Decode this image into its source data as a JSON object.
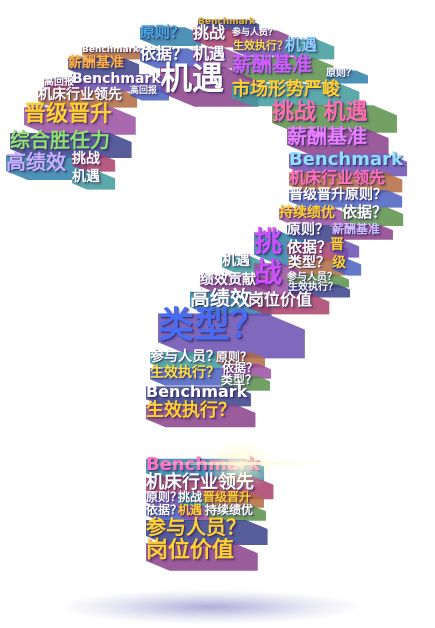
{
  "words": [
    {
      "text": "Benchmark",
      "color": "#e8b830"
    },
    {
      "text": "参与人员？",
      "color": "#ffffff"
    },
    {
      "text": "原则？",
      "color": "#4aa8e0"
    },
    {
      "text": "挑战",
      "color": "#ffffff"
    },
    {
      "text": "生效执行？",
      "color": "#ffe040"
    },
    {
      "text": "机遇",
      "color": "#8fd0ff"
    },
    {
      "text": "Benchmark",
      "color": "#ffffff"
    },
    {
      "text": "依据？",
      "color": "#ffffff"
    },
    {
      "text": "机遇",
      "color": "#ffffff"
    },
    {
      "text": "薪酬基准",
      "color": "#d05cff"
    },
    {
      "text": "薪酬基准",
      "color": "#ffb040"
    },
    {
      "text": "机遇",
      "color": "#ffffff"
    },
    {
      "text": "原则？",
      "color": "#ffffff"
    },
    {
      "text": "高回报",
      "color": "#ffffff"
    },
    {
      "text": "Benchmark",
      "color": "#ffffff"
    },
    {
      "text": "市场形势严峻",
      "color": "#ffd030"
    },
    {
      "text": "机床行业领先",
      "color": "#ffffff"
    },
    {
      "text": "高回报",
      "color": "#ffffff"
    },
    {
      "text": "晋级晋升",
      "color": "#ffd030"
    },
    {
      "text": "挑战 机遇",
      "color": "#ff6fb0"
    },
    {
      "text": "综合胜任力",
      "color": "#8fe070"
    },
    {
      "text": "薪酬基准",
      "color": "#e880ff"
    },
    {
      "text": "高绩效",
      "color": "#c8b0ff"
    },
    {
      "text": "挑战",
      "color": "#ffffff"
    },
    {
      "text": "Benchmark",
      "color": "#8fe0ff"
    },
    {
      "text": "机遇",
      "color": "#ffffff"
    },
    {
      "text": "机床行业领先",
      "color": "#ff70c0"
    },
    {
      "text": "晋级晋升原则？",
      "color": "#ffffff"
    },
    {
      "text": "持续绩优",
      "color": "#ffd030"
    },
    {
      "text": "依据？",
      "color": "#ffffff"
    },
    {
      "text": "原则？",
      "color": "#ffffff"
    },
    {
      "text": "薪酬基准",
      "color": "#d0c0ff"
    },
    {
      "text": "挑",
      "color": "#d050ff"
    },
    {
      "text": "依据？",
      "color": "#ffffff"
    },
    {
      "text": "晋",
      "color": "#ffd030"
    },
    {
      "text": "机遇",
      "color": "#ffffff"
    },
    {
      "text": "类型？",
      "color": "#ffffff"
    },
    {
      "text": "级",
      "color": "#ffd030"
    },
    {
      "text": "战",
      "color": "#d050ff"
    },
    {
      "text": "参与人员？",
      "color": "#ffffff"
    },
    {
      "text": "生效执行？",
      "color": "#ffffff"
    },
    {
      "text": "绩效贡献",
      "color": "#ffffff"
    },
    {
      "text": "高绩效",
      "color": "#ffffff"
    },
    {
      "text": "岗位价值",
      "color": "#ffffff"
    },
    {
      "text": "类型？",
      "color": "#4a6cf0"
    },
    {
      "text": "参与人员？",
      "color": "#ffffff"
    },
    {
      "text": "原则？",
      "color": "#ffffff"
    },
    {
      "text": "生效执行？",
      "color": "#ffe040"
    },
    {
      "text": "依据？",
      "color": "#ffffff"
    },
    {
      "text": "类型？",
      "color": "#ffffff"
    },
    {
      "text": "Benchmark",
      "color": "#ffffff"
    },
    {
      "text": "生效执行？",
      "color": "#ffd030"
    },
    {
      "text": "Benchmark",
      "color": "#ff70c0"
    },
    {
      "text": "机床行业领先",
      "color": "#ffffff"
    },
    {
      "text": "原则？",
      "color": "#ffffff"
    },
    {
      "text": "挑战",
      "color": "#ffffff"
    },
    {
      "text": "晋级晋升",
      "color": "#ffd030"
    },
    {
      "text": "依据？",
      "color": "#ffffff"
    },
    {
      "text": "机遇",
      "color": "#ffd030"
    },
    {
      "text": "持续绩优",
      "color": "#ffffff"
    },
    {
      "text": "参与人员？",
      "color": "#ffd030"
    },
    {
      "text": "岗位价值",
      "color": "#ffd030"
    }
  ]
}
